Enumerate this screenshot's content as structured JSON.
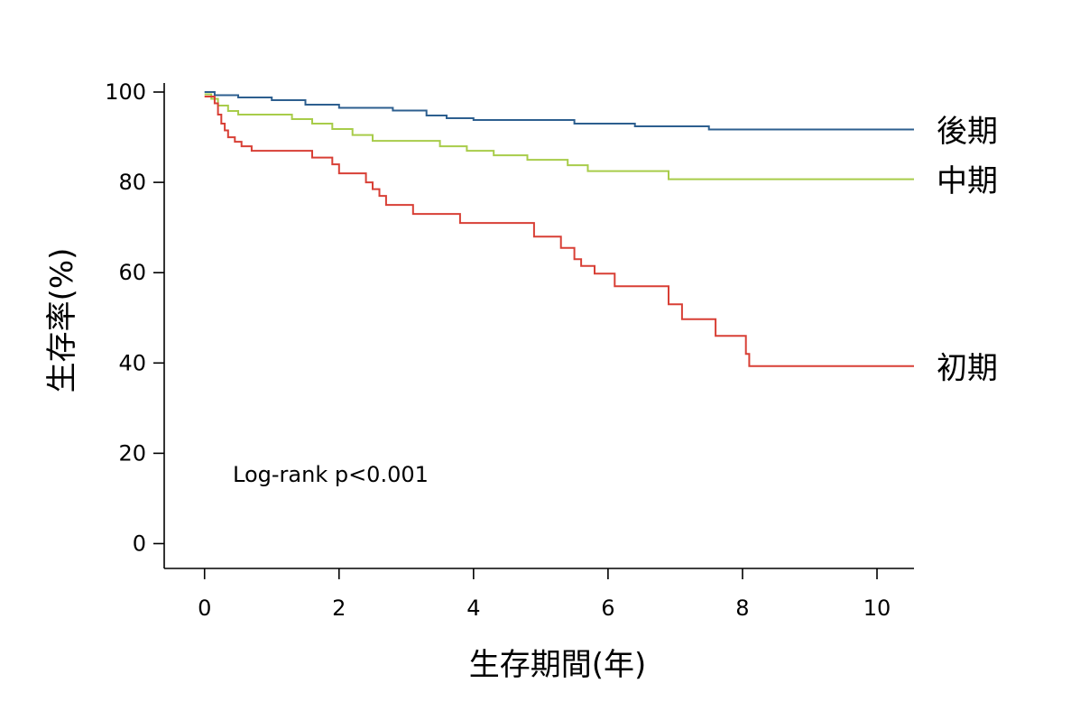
{
  "chart_data": {
    "type": "line",
    "step": true,
    "title": "",
    "xlabel": "生存期間(年)",
    "ylabel": "生存率(%)",
    "xlim": [
      -0.6,
      10.55
    ],
    "ylim": [
      -5.5,
      102
    ],
    "xticks": [
      0,
      2,
      4,
      6,
      8,
      10
    ],
    "yticks": [
      0,
      20,
      40,
      60,
      80,
      100
    ],
    "grid": false,
    "annotation": "Log-rank p<0.001",
    "series": [
      {
        "name": "後期",
        "color": "#2d5f8f",
        "x": [
          0,
          0.15,
          0.5,
          1.0,
          1.5,
          2.0,
          2.8,
          3.3,
          3.6,
          4.0,
          5.5,
          6.4,
          7.5,
          8.5,
          10.55
        ],
        "y": [
          100,
          99.3,
          98.8,
          98.2,
          97.2,
          96.5,
          95.9,
          94.8,
          94.2,
          93.8,
          93.0,
          92.4,
          91.7,
          91.7,
          91.7
        ]
      },
      {
        "name": "中期",
        "color": "#a8cc4a",
        "x": [
          0,
          0.1,
          0.2,
          0.35,
          0.5,
          1.3,
          1.6,
          1.9,
          2.2,
          2.5,
          3.5,
          3.9,
          4.3,
          4.8,
          5.4,
          5.7,
          6.9,
          10.55
        ],
        "y": [
          99.5,
          98.5,
          97.0,
          95.8,
          95.0,
          94.0,
          93.0,
          91.8,
          90.5,
          89.2,
          88.0,
          87.0,
          86.0,
          85.0,
          83.8,
          82.5,
          80.7,
          80.7
        ]
      },
      {
        "name": "初期",
        "color": "#d83f35",
        "x": [
          0,
          0.15,
          0.2,
          0.25,
          0.3,
          0.35,
          0.45,
          0.55,
          0.7,
          1.6,
          1.9,
          2.0,
          2.4,
          2.5,
          2.6,
          2.7,
          3.1,
          3.8,
          4.9,
          5.3,
          5.5,
          5.6,
          5.8,
          6.1,
          6.9,
          7.1,
          7.6,
          8.05,
          8.1,
          10.55
        ],
        "y": [
          99.0,
          97.5,
          95.0,
          93.0,
          91.5,
          90.0,
          89.0,
          88.0,
          87.0,
          85.5,
          84.0,
          82.0,
          80.0,
          78.5,
          77.0,
          75.0,
          73.0,
          71.0,
          68.0,
          65.5,
          63.0,
          61.5,
          59.8,
          57.0,
          53.0,
          49.7,
          46.0,
          42.0,
          39.3,
          39.3
        ]
      }
    ]
  }
}
